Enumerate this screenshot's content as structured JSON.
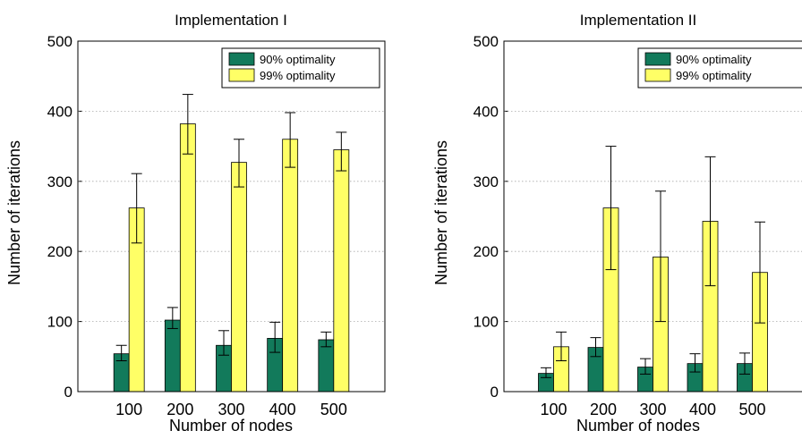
{
  "colors": {
    "s1": "#127a5b",
    "s2": "#ffff66",
    "grid": "#aaaaaa"
  },
  "chart_data": [
    {
      "type": "bar",
      "title": "Implementation I",
      "xlabel": "Number of nodes",
      "ylabel": "Number of iterations",
      "categories": [
        "100",
        "200",
        "300",
        "400",
        "500"
      ],
      "ylim": [
        0,
        500
      ],
      "yticks": [
        "0",
        "100",
        "200",
        "300",
        "400",
        "500"
      ],
      "grid": true,
      "legend": "top-right",
      "series": [
        {
          "name": "90% optimality",
          "values": [
            54,
            102,
            66,
            76,
            74
          ],
          "err_low": [
            44,
            90,
            52,
            56,
            64
          ],
          "err_high": [
            66,
            120,
            87,
            99,
            85
          ]
        },
        {
          "name": "99% optimality",
          "values": [
            262,
            382,
            327,
            360,
            345
          ],
          "err_low": [
            212,
            339,
            292,
            320,
            315
          ],
          "err_high": [
            311,
            424,
            360,
            398,
            370
          ]
        }
      ]
    },
    {
      "type": "bar",
      "title": "Implementation II",
      "xlabel": "Number of nodes",
      "ylabel": "Number of iterations",
      "categories": [
        "100",
        "200",
        "300",
        "400",
        "500"
      ],
      "ylim": [
        0,
        500
      ],
      "yticks": [
        "0",
        "100",
        "200",
        "300",
        "400",
        "500"
      ],
      "grid": true,
      "legend": "top-right",
      "series": [
        {
          "name": "90% optimality",
          "values": [
            26,
            63,
            35,
            40,
            40
          ],
          "err_low": [
            20,
            50,
            25,
            28,
            25
          ],
          "err_high": [
            34,
            77,
            47,
            54,
            55
          ]
        },
        {
          "name": "99% optimality",
          "values": [
            64,
            262,
            192,
            243,
            170
          ],
          "err_low": [
            44,
            174,
            100,
            151,
            98
          ],
          "err_high": [
            85,
            350,
            286,
            335,
            242
          ]
        }
      ]
    }
  ]
}
